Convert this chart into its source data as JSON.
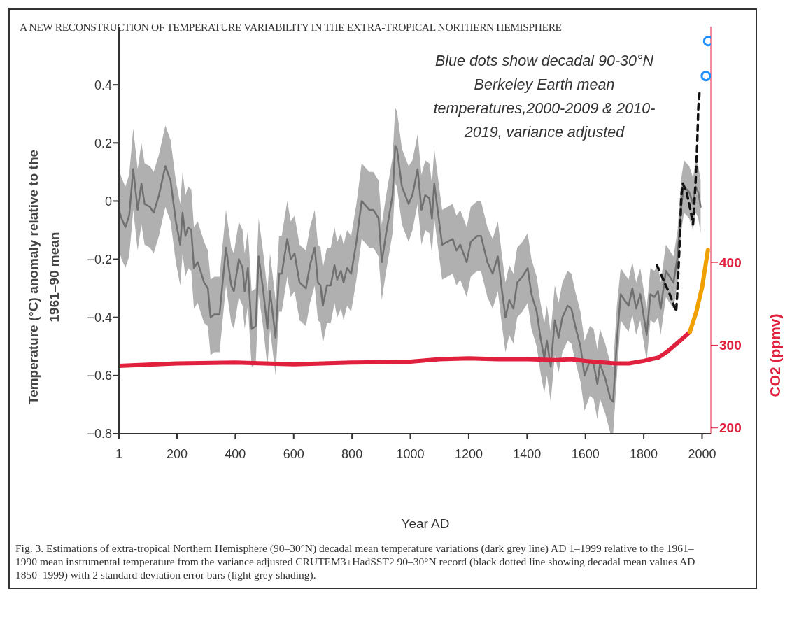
{
  "chart_data": {
    "type": "line",
    "title": "A NEW RECONSTRUCTION OF TEMPERATURE VARIABILITY IN THE EXTRA-TROPICAL NORTHERN HEMISPHERE",
    "xlabel": "Year AD",
    "ylabel": "Temperature (°C) anomaly relative to the 1961–90 mean",
    "y2label": "CO2 (ppmv)",
    "xlim": [
      1,
      2030
    ],
    "xticks": [
      1,
      200,
      400,
      600,
      800,
      1000,
      1200,
      1400,
      1600,
      1800,
      2000
    ],
    "ylim": [
      -0.8,
      0.6
    ],
    "yticks": [
      -0.8,
      -0.6,
      -0.4,
      -0.2,
      0,
      0.2,
      0.4
    ],
    "y2lim": [
      193,
      685
    ],
    "y2ticks": [
      200,
      300,
      400
    ],
    "grid": false,
    "annotations": [
      "Blue dots show decadal 90-30°N Berkeley Earth mean temperatures,2000-2009 & 2010-2019, variance adjusted",
      "Fig. 3. Estimations of extra-tropical Northern Hemisphere (90–30°N) decadal mean temperature variations (dark grey line) AD 1–1999 relative to the 1961–1990 mean instrumental temperature from the variance adjusted CRUTEM3+HadSST2 90–30°N record (black dotted line showing decadal mean values AD 1850–1999) with 2 standard deviation error bars (light grey shading)."
    ],
    "series": [
      {
        "color": "#707070",
        "x": [
          1,
          10,
          23,
          36,
          50,
          65,
          78,
          89,
          107,
          120,
          138,
          160,
          178,
          196,
          211,
          219,
          229,
          238,
          249,
          258,
          271,
          293,
          306,
          315,
          328,
          346,
          368,
          386,
          395,
          412,
          425,
          432,
          443,
          456,
          470,
          480,
          496,
          510,
          519,
          538,
          550,
          559,
          578,
          590,
          603,
          620,
          642,
          656,
          672,
          683,
          692,
          700,
          714,
          727,
          740,
          749,
          762,
          771,
          783,
          797,
          815,
          833,
          859,
          873,
          891,
          902,
          917,
          939,
          948,
          954,
          971,
          994,
          1007,
          1025,
          1038,
          1051,
          1065,
          1074,
          1082,
          1096,
          1109,
          1127,
          1145,
          1158,
          1171,
          1193,
          1207,
          1229,
          1242,
          1264,
          1282,
          1300,
          1313,
          1326,
          1339,
          1353,
          1366,
          1384,
          1402,
          1415,
          1433,
          1446,
          1459,
          1468,
          1481,
          1495,
          1508,
          1521,
          1539,
          1552,
          1565,
          1583,
          1597,
          1615,
          1628,
          1641,
          1650,
          1668,
          1686,
          1695,
          1708,
          1721,
          1734,
          1748,
          1761,
          1774,
          1788,
          1810,
          1823,
          1836,
          1849,
          1858,
          1876,
          1902,
          1916,
          1929,
          1938,
          1956,
          1969,
          1978,
          1987,
          1995
        ],
        "values": [
          -0.03,
          -0.06,
          -0.09,
          -0.05,
          0.11,
          -0.03,
          0.06,
          -0.01,
          -0.02,
          -0.04,
          0.02,
          0.12,
          0.07,
          -0.07,
          -0.15,
          -0.04,
          -0.12,
          -0.09,
          -0.1,
          -0.23,
          -0.21,
          -0.28,
          -0.3,
          -0.4,
          -0.39,
          -0.39,
          -0.16,
          -0.29,
          -0.31,
          -0.2,
          -0.23,
          -0.31,
          -0.23,
          -0.44,
          -0.43,
          -0.19,
          -0.31,
          -0.44,
          -0.31,
          -0.47,
          -0.25,
          -0.25,
          -0.13,
          -0.2,
          -0.18,
          -0.28,
          -0.3,
          -0.22,
          -0.16,
          -0.28,
          -0.29,
          -0.36,
          -0.29,
          -0.29,
          -0.22,
          -0.27,
          -0.24,
          -0.28,
          -0.23,
          -0.25,
          -0.14,
          0.0,
          -0.03,
          -0.03,
          -0.06,
          -0.21,
          -0.11,
          0.02,
          0.19,
          0.18,
          0.05,
          -0.01,
          0.02,
          0.11,
          -0.03,
          0.02,
          0.01,
          -0.06,
          0.06,
          -0.05,
          -0.15,
          -0.14,
          -0.13,
          -0.17,
          -0.15,
          -0.21,
          -0.14,
          -0.12,
          -0.12,
          -0.21,
          -0.25,
          -0.19,
          -0.3,
          -0.4,
          -0.34,
          -0.37,
          -0.28,
          -0.26,
          -0.23,
          -0.32,
          -0.38,
          -0.47,
          -0.54,
          -0.48,
          -0.57,
          -0.41,
          -0.47,
          -0.4,
          -0.36,
          -0.37,
          -0.43,
          -0.5,
          -0.6,
          -0.55,
          -0.56,
          -0.63,
          -0.56,
          -0.61,
          -0.68,
          -0.69,
          -0.48,
          -0.32,
          -0.34,
          -0.36,
          -0.3,
          -0.37,
          -0.32,
          -0.46,
          -0.32,
          -0.33,
          -0.31,
          -0.37,
          -0.24,
          -0.28,
          -0.19,
          -0.01,
          0.05,
          0.03,
          -0.01,
          0.05,
          0.03,
          -0.02
        ],
        "lower": [
          -0.17,
          -0.2,
          -0.23,
          -0.19,
          -0.03,
          -0.17,
          -0.08,
          -0.15,
          -0.16,
          -0.18,
          -0.12,
          -0.02,
          -0.07,
          -0.21,
          -0.29,
          -0.18,
          -0.26,
          -0.23,
          -0.24,
          -0.37,
          -0.35,
          -0.42,
          -0.43,
          -0.53,
          -0.52,
          -0.52,
          -0.29,
          -0.42,
          -0.44,
          -0.33,
          -0.36,
          -0.44,
          -0.36,
          -0.57,
          -0.56,
          -0.32,
          -0.44,
          -0.57,
          -0.44,
          -0.6,
          -0.38,
          -0.38,
          -0.26,
          -0.33,
          -0.31,
          -0.41,
          -0.43,
          -0.35,
          -0.29,
          -0.41,
          -0.42,
          -0.49,
          -0.42,
          -0.42,
          -0.35,
          -0.4,
          -0.37,
          -0.41,
          -0.36,
          -0.38,
          -0.27,
          -0.13,
          -0.16,
          -0.16,
          -0.19,
          -0.34,
          -0.24,
          -0.11,
          0.06,
          0.05,
          -0.08,
          -0.14,
          -0.1,
          -0.01,
          -0.15,
          -0.1,
          -0.11,
          -0.18,
          -0.06,
          -0.17,
          -0.27,
          -0.26,
          -0.25,
          -0.29,
          -0.27,
          -0.33,
          -0.26,
          -0.24,
          -0.24,
          -0.33,
          -0.37,
          -0.31,
          -0.42,
          -0.52,
          -0.46,
          -0.49,
          -0.4,
          -0.38,
          -0.35,
          -0.44,
          -0.5,
          -0.59,
          -0.66,
          -0.6,
          -0.69,
          -0.53,
          -0.59,
          -0.52,
          -0.48,
          -0.49,
          -0.55,
          -0.62,
          -0.72,
          -0.67,
          -0.68,
          -0.75,
          -0.68,
          -0.73,
          -0.8,
          -0.8,
          -0.6,
          -0.41,
          -0.43,
          -0.45,
          -0.39,
          -0.46,
          -0.41,
          -0.55,
          -0.41,
          -0.42,
          -0.4,
          -0.46,
          -0.33,
          -0.37,
          -0.28,
          -0.1,
          -0.04,
          -0.06,
          -0.1,
          -0.04,
          -0.06,
          -0.11
        ],
        "upper": [
          0.11,
          0.08,
          0.05,
          0.09,
          0.25,
          0.11,
          0.2,
          0.13,
          0.12,
          0.1,
          0.16,
          0.26,
          0.21,
          0.07,
          -0.01,
          0.1,
          0.02,
          0.05,
          0.04,
          -0.09,
          -0.07,
          -0.14,
          -0.17,
          -0.27,
          -0.26,
          -0.26,
          -0.03,
          -0.16,
          -0.18,
          -0.07,
          -0.1,
          -0.18,
          -0.1,
          -0.31,
          -0.3,
          -0.06,
          -0.18,
          -0.31,
          -0.18,
          -0.34,
          -0.12,
          -0.12,
          0.0,
          -0.07,
          -0.05,
          -0.15,
          -0.17,
          -0.09,
          -0.03,
          -0.15,
          -0.16,
          -0.23,
          -0.16,
          -0.16,
          -0.09,
          -0.14,
          -0.11,
          -0.15,
          -0.1,
          -0.12,
          -0.01,
          0.13,
          0.1,
          0.1,
          0.07,
          -0.08,
          0.02,
          0.15,
          0.32,
          0.31,
          0.18,
          0.12,
          0.14,
          0.23,
          0.09,
          0.14,
          0.13,
          0.06,
          0.18,
          0.07,
          -0.03,
          -0.02,
          -0.01,
          -0.05,
          -0.03,
          -0.09,
          -0.02,
          0.0,
          0.0,
          -0.09,
          -0.13,
          -0.07,
          -0.18,
          -0.28,
          -0.22,
          -0.25,
          -0.16,
          -0.14,
          -0.11,
          -0.2,
          -0.26,
          -0.35,
          -0.42,
          -0.36,
          -0.45,
          -0.29,
          -0.35,
          -0.28,
          -0.24,
          -0.25,
          -0.31,
          -0.38,
          -0.48,
          -0.43,
          -0.44,
          -0.51,
          -0.44,
          -0.49,
          -0.56,
          -0.57,
          -0.36,
          -0.23,
          -0.25,
          -0.27,
          -0.21,
          -0.28,
          -0.23,
          -0.37,
          -0.23,
          -0.24,
          -0.22,
          -0.28,
          -0.15,
          -0.19,
          -0.1,
          0.08,
          0.14,
          0.12,
          0.08,
          0.14,
          0.12,
          0.07
        ]
      },
      {
        "color": "#111111",
        "line_style": "dashed",
        "x": [
          1845,
          1867,
          1889,
          1911,
          1916,
          1922,
          1929,
          1934,
          1947,
          1960,
          1969,
          1978,
          1983,
          1987,
          1991
        ],
        "values": [
          -0.22,
          -0.27,
          -0.32,
          -0.38,
          -0.3,
          -0.17,
          0.02,
          0.06,
          0.03,
          -0.03,
          -0.08,
          0.07,
          0.19,
          0.32,
          0.37
        ]
      },
      {
        "type": "scatter",
        "color": "#1e90ff",
        "marker": "circle",
        "x": [
          2013,
          2021
        ],
        "values": [
          0.43,
          0.55
        ]
      },
      {
        "axis": "y2",
        "color": "#e0203c",
        "x": [
          1,
          200,
          400,
          600,
          800,
          1000,
          1100,
          1200,
          1300,
          1400,
          1500,
          1550,
          1600,
          1700,
          1750,
          1800,
          1850,
          1880,
          1900,
          1930,
          1958
        ],
        "values": [
          275,
          278,
          279,
          277,
          279,
          280,
          283,
          284,
          283,
          283,
          282,
          283,
          281,
          278,
          278,
          281,
          285,
          292,
          298,
          307,
          316
        ]
      },
      {
        "axis": "y2",
        "color": "#f0a000",
        "x": [
          1958,
          1980,
          2000,
          2020
        ],
        "values": [
          316,
          340,
          370,
          415
        ]
      }
    ]
  }
}
